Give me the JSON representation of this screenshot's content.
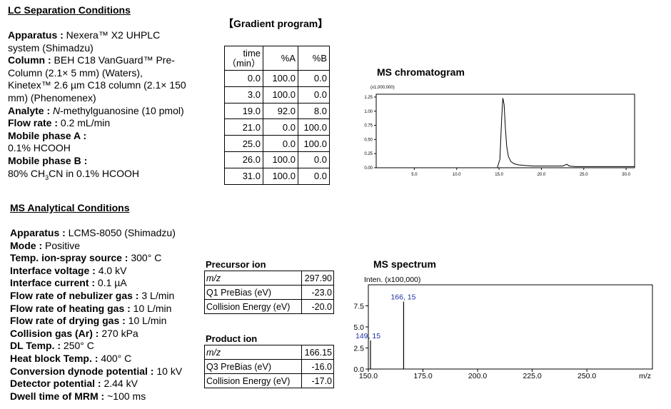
{
  "lc": {
    "heading": "LC Separation Conditions",
    "apparatus_label": "Apparatus :",
    "apparatus_value_1": " Nexera™ X2 UHPLC",
    "apparatus_value_2": "system (Shimadzu)",
    "column_label": "Column :",
    "column_value_1": " BEH C18 VanGuard™ Pre-",
    "column_value_2": "Column (2.1× 5 mm) (Waters),",
    "column_value_3": "Kinetex™ 2.6 µm C18 column (2.1× 150",
    "column_value_4": "mm) (Phenomenex)",
    "analyte_label": "Analyte :",
    "analyte_value_italic": " N",
    "analyte_value_rest": "-methylguanosine (10 pmol)",
    "flow_label": "Flow rate :",
    "flow_value": " 0.2 mL/min",
    "mpa_label": "Mobile phase A :",
    "mpa_value": "0.1% HCOOH",
    "mpb_label": "Mobile phase B :",
    "mpb_value_1": "80% CH",
    "mpb_sub_1": "3",
    "mpb_value_2": "CN in 0.1% HCOOH"
  },
  "gradient": {
    "title": "【Gradient program】",
    "headers": [
      "time\n(min)",
      "%A",
      "%B"
    ],
    "header_time_1": "time",
    "header_time_2": "（min）",
    "header_a": "%A",
    "header_b": "%B",
    "rows": [
      [
        "0.0",
        "100.0",
        "0.0"
      ],
      [
        "3.0",
        "100.0",
        "0.0"
      ],
      [
        "19.0",
        "92.0",
        "8.0"
      ],
      [
        "21.0",
        "0.0",
        "100.0"
      ],
      [
        "25.0",
        "0.0",
        "100.0"
      ],
      [
        "26.0",
        "100.0",
        "0.0"
      ],
      [
        "31.0",
        "100.0",
        "0.0"
      ]
    ]
  },
  "ms": {
    "heading": "MS Analytical Conditions",
    "items": [
      {
        "label": "Apparatus :",
        "value": " LCMS-8050 (Shimadzu)"
      },
      {
        "label": "Mode :",
        "value": " Positive"
      },
      {
        "label": "Temp. ion-spray source :",
        "value": " 300°  C"
      },
      {
        "label": "Interface voltage :",
        "value": " 4.0 kV"
      },
      {
        "label": "Interface current :",
        "value": " 0.1 µA"
      },
      {
        "label": "Flow rate of nebulizer gas :",
        "value": " 3 L/min"
      },
      {
        "label": "Flow rate of heating gas :",
        "value": " 10 L/min"
      },
      {
        "label": "Flow rate of drying gas :",
        "value": " 10 L/min"
      },
      {
        "label": "Collision gas (Ar) :",
        "value": " 270 kPa"
      },
      {
        "label": "DL Temp. :",
        "value": " 250°  C"
      },
      {
        "label": "Heat block Temp. :",
        "value": " 400°  C"
      },
      {
        "label": "Conversion dynode potential :",
        "value": " 10 kV"
      },
      {
        "label": "Detector potential :",
        "value": " 2.44 kV"
      },
      {
        "label": "Dwell time of MRM :",
        "value": " ~100 ms"
      }
    ]
  },
  "precursor": {
    "title": "Precursor ion",
    "rows": [
      {
        "label": "m/z",
        "value": "297.90"
      },
      {
        "label": "Q1 PreBias (eV)",
        "value": "-23.0"
      },
      {
        "label": "Collision Energy (eV)",
        "value": "-20.0"
      }
    ]
  },
  "product": {
    "title": "Product ion",
    "rows": [
      {
        "label": "m/z",
        "value": "166.15"
      },
      {
        "label": "Q3 PreBias (eV)",
        "value": "-16.0"
      },
      {
        "label": "Collision Energy (eV)",
        "value": "-17.0"
      }
    ]
  },
  "chromatogram": {
    "title": "MS chromatogram",
    "scale_label": "(x1,000,000)"
  },
  "spectrum": {
    "title": "MS spectrum",
    "ylabel": "Inten. (x100,000)",
    "xlabel": "m/z"
  },
  "chart_data": [
    {
      "type": "line",
      "title": "MS chromatogram",
      "ylabel": "(x1,000,000)",
      "xlabel": "",
      "xlim": [
        0.5,
        31.0
      ],
      "ylim": [
        0.0,
        1.3
      ],
      "xticks": [
        "5.0",
        "10.0",
        "15.0",
        "20.0",
        "25.0",
        "30.0"
      ],
      "xtick_values": [
        5.0,
        10.0,
        15.0,
        20.0,
        25.0,
        30.0
      ],
      "yticks": [
        "0.00",
        "0.25",
        "0.50",
        "0.75",
        "1.00",
        "1.25"
      ],
      "ytick_values": [
        0.0,
        0.25,
        0.5,
        0.75,
        1.0,
        1.25
      ],
      "series": [
        {
          "x": [
            0.5,
            5.0,
            10.0,
            14.8,
            15.1,
            15.3,
            15.45,
            15.6,
            15.75,
            15.9,
            16.1,
            16.4,
            16.8,
            17.3,
            18.0,
            19.0,
            20.0,
            22.5,
            23.0,
            23.3,
            24.0,
            26.0,
            28.0,
            31.0
          ],
          "y": [
            0.0,
            0.0,
            0.0,
            0.0,
            0.15,
            0.85,
            1.23,
            1.12,
            0.7,
            0.38,
            0.2,
            0.11,
            0.07,
            0.05,
            0.04,
            0.03,
            0.03,
            0.03,
            0.06,
            0.03,
            0.02,
            0.02,
            0.02,
            0.02
          ]
        }
      ]
    },
    {
      "type": "bar",
      "title": "MS spectrum",
      "ylabel": "Inten. (x100,000)",
      "xlabel": "m/z",
      "xlim": [
        150.0,
        280.0
      ],
      "ylim": [
        0.0,
        10.0
      ],
      "xticks": [
        "150.0",
        "175.0",
        "200.0",
        "225.0",
        "250.0"
      ],
      "xtick_values": [
        150.0,
        175.0,
        200.0,
        225.0,
        250.0
      ],
      "yticks": [
        "0.0",
        "2.5",
        "5.0",
        "7.5"
      ],
      "ytick_values": [
        0.0,
        2.5,
        5.0,
        7.5
      ],
      "peaks": [
        {
          "x": 149.15,
          "y": 3.4,
          "label": "149.15"
        },
        {
          "x": 166.15,
          "y": 8.0,
          "label": "166.15"
        }
      ]
    }
  ]
}
